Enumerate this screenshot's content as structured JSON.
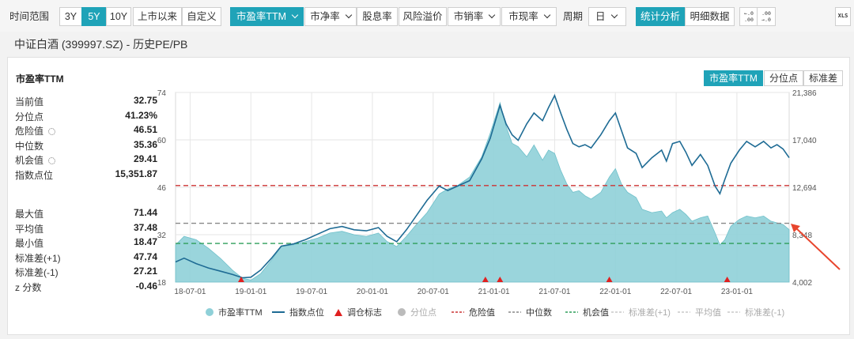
{
  "toolbar": {
    "range_label": "时间范围",
    "ranges": [
      "3Y",
      "5Y",
      "10Y",
      "上市以来",
      "自定义"
    ],
    "active_range": "5Y",
    "metrics": [
      "市盈率TTM",
      "市净率",
      "股息率",
      "风险溢价",
      "市销率",
      "市现率"
    ],
    "active_metric": "市盈率TTM",
    "period_label": "周期",
    "period_value": "日",
    "view_buttons": [
      "统计分析",
      "明细数据"
    ],
    "active_view": "统计分析",
    "decimal_up_icon": [
      "←.0",
      ".00"
    ],
    "decimal_down_icon": [
      ".00",
      "→.0"
    ],
    "export_icon": "XLS"
  },
  "page_title": "中证白酒 (399997.SZ) - 历史PE/PB",
  "panel": {
    "title": "市盈率TTM",
    "segments": [
      "市盈率TTM",
      "分位点",
      "标准差"
    ],
    "active_segment": "市盈率TTM"
  },
  "stats_top": [
    {
      "label": "当前值",
      "value": "32.75"
    },
    {
      "label": "分位点",
      "value": "41.23%"
    },
    {
      "label": "危险值",
      "value": "46.51",
      "gear": true
    },
    {
      "label": "中位数",
      "value": "35.36"
    },
    {
      "label": "机会值",
      "value": "29.41",
      "gear": true
    },
    {
      "label": "指数点位",
      "value": "15,351.87"
    }
  ],
  "stats_bottom": [
    {
      "label": "最大值",
      "value": "71.44"
    },
    {
      "label": "平均值",
      "value": "37.48"
    },
    {
      "label": "最小值",
      "value": "18.47"
    },
    {
      "label": "标准差(+1)",
      "value": "47.74"
    },
    {
      "label": "标准差(-1)",
      "value": "27.21"
    },
    {
      "label": "z 分数",
      "value": "-0.46"
    }
  ],
  "chart_data": {
    "type": "area",
    "x_ticks": [
      "18-07-01",
      "19-01-01",
      "19-07-01",
      "20-01-01",
      "20-07-01",
      "21-01-01",
      "21-07-01",
      "22-01-01",
      "22-07-01",
      "23-01-01"
    ],
    "x_start": 2018.38,
    "x_end": 2023.43,
    "y_left_ticks": [
      "74",
      "60",
      "46",
      "32",
      "18"
    ],
    "y_left_range": [
      18,
      74
    ],
    "y_right_ticks": [
      "21,386",
      "17,040",
      "12,694",
      "8,348",
      "4,002"
    ],
    "y_right_range": [
      4002,
      21386
    ],
    "grid": true,
    "colors": {
      "pe_area": "#8fd0d8",
      "index_line": "#1e6b94",
      "rebalance": "#e02020",
      "danger": "#cc3333",
      "median": "#888888",
      "opportunity": "#2e9e5a",
      "grid": "#e6e6e6"
    },
    "series": [
      {
        "name": "市盈率TTM",
        "axis": "left",
        "points": [
          [
            2018.38,
            29.0
          ],
          [
            2018.45,
            31.5
          ],
          [
            2018.55,
            30.5
          ],
          [
            2018.65,
            28.0
          ],
          [
            2018.75,
            25.0
          ],
          [
            2018.85,
            21.5
          ],
          [
            2018.93,
            19.2
          ],
          [
            2019.0,
            18.6
          ],
          [
            2019.08,
            20.5
          ],
          [
            2019.17,
            24.5
          ],
          [
            2019.25,
            28.5
          ],
          [
            2019.35,
            29.0
          ],
          [
            2019.45,
            30.0
          ],
          [
            2019.55,
            31.0
          ],
          [
            2019.65,
            32.5
          ],
          [
            2019.75,
            33.0
          ],
          [
            2019.85,
            32.0
          ],
          [
            2019.95,
            31.5
          ],
          [
            2020.05,
            32.5
          ],
          [
            2020.12,
            30.0
          ],
          [
            2020.2,
            28.5
          ],
          [
            2020.28,
            31.5
          ],
          [
            2020.35,
            34.5
          ],
          [
            2020.45,
            38.5
          ],
          [
            2020.55,
            44.0
          ],
          [
            2020.62,
            45.5
          ],
          [
            2020.7,
            46.5
          ],
          [
            2020.8,
            49.0
          ],
          [
            2020.9,
            55.0
          ],
          [
            2020.97,
            62.0
          ],
          [
            2021.05,
            71.0
          ],
          [
            2021.1,
            64.0
          ],
          [
            2021.15,
            59.0
          ],
          [
            2021.2,
            58.0
          ],
          [
            2021.27,
            55.0
          ],
          [
            2021.33,
            58.5
          ],
          [
            2021.4,
            54.0
          ],
          [
            2021.45,
            57.0
          ],
          [
            2021.5,
            56.0
          ],
          [
            2021.55,
            51.0
          ],
          [
            2021.6,
            47.0
          ],
          [
            2021.65,
            44.5
          ],
          [
            2021.7,
            45.0
          ],
          [
            2021.75,
            43.5
          ],
          [
            2021.8,
            42.5
          ],
          [
            2021.88,
            44.5
          ],
          [
            2021.95,
            49.0
          ],
          [
            2022.0,
            51.5
          ],
          [
            2022.05,
            47.0
          ],
          [
            2022.1,
            44.5
          ],
          [
            2022.17,
            43.0
          ],
          [
            2022.22,
            39.5
          ],
          [
            2022.3,
            38.5
          ],
          [
            2022.38,
            39.0
          ],
          [
            2022.42,
            37.0
          ],
          [
            2022.47,
            38.5
          ],
          [
            2022.53,
            39.5
          ],
          [
            2022.58,
            38.0
          ],
          [
            2022.63,
            36.0
          ],
          [
            2022.7,
            37.0
          ],
          [
            2022.76,
            37.5
          ],
          [
            2022.82,
            32.5
          ],
          [
            2022.86,
            29.0
          ],
          [
            2022.9,
            30.5
          ],
          [
            2022.95,
            34.5
          ],
          [
            2023.02,
            36.5
          ],
          [
            2023.08,
            37.5
          ],
          [
            2023.15,
            37.0
          ],
          [
            2023.22,
            37.5
          ],
          [
            2023.28,
            36.0
          ],
          [
            2023.33,
            35.5
          ],
          [
            2023.38,
            35.0
          ],
          [
            2023.43,
            33.5
          ]
        ]
      },
      {
        "name": "指数点位",
        "axis": "right",
        "points": [
          [
            2018.38,
            5850
          ],
          [
            2018.45,
            6200
          ],
          [
            2018.55,
            5700
          ],
          [
            2018.65,
            5300
          ],
          [
            2018.75,
            5000
          ],
          [
            2018.85,
            4700
          ],
          [
            2018.93,
            4400
          ],
          [
            2019.0,
            4450
          ],
          [
            2019.08,
            5100
          ],
          [
            2019.17,
            6200
          ],
          [
            2019.25,
            7300
          ],
          [
            2019.35,
            7500
          ],
          [
            2019.45,
            7900
          ],
          [
            2019.55,
            8400
          ],
          [
            2019.65,
            8900
          ],
          [
            2019.75,
            9100
          ],
          [
            2019.85,
            8800
          ],
          [
            2019.95,
            8700
          ],
          [
            2020.05,
            9000
          ],
          [
            2020.12,
            8200
          ],
          [
            2020.2,
            7700
          ],
          [
            2020.28,
            8800
          ],
          [
            2020.35,
            9900
          ],
          [
            2020.45,
            11500
          ],
          [
            2020.55,
            12800
          ],
          [
            2020.62,
            12400
          ],
          [
            2020.7,
            12800
          ],
          [
            2020.8,
            13300
          ],
          [
            2020.9,
            15300
          ],
          [
            2020.97,
            17200
          ],
          [
            2021.05,
            20200
          ],
          [
            2021.1,
            18500
          ],
          [
            2021.15,
            17500
          ],
          [
            2021.2,
            17000
          ],
          [
            2021.27,
            18500
          ],
          [
            2021.33,
            19500
          ],
          [
            2021.4,
            18800
          ],
          [
            2021.45,
            20000
          ],
          [
            2021.5,
            21100
          ],
          [
            2021.55,
            19500
          ],
          [
            2021.6,
            18000
          ],
          [
            2021.65,
            16700
          ],
          [
            2021.7,
            16400
          ],
          [
            2021.75,
            16600
          ],
          [
            2021.8,
            16300
          ],
          [
            2021.88,
            17500
          ],
          [
            2021.95,
            18800
          ],
          [
            2022.0,
            19500
          ],
          [
            2022.05,
            17900
          ],
          [
            2022.1,
            16300
          ],
          [
            2022.17,
            15800
          ],
          [
            2022.22,
            14500
          ],
          [
            2022.3,
            15400
          ],
          [
            2022.38,
            16100
          ],
          [
            2022.42,
            15100
          ],
          [
            2022.47,
            16700
          ],
          [
            2022.53,
            16900
          ],
          [
            2022.58,
            15900
          ],
          [
            2022.63,
            14700
          ],
          [
            2022.7,
            15700
          ],
          [
            2022.76,
            14700
          ],
          [
            2022.82,
            12800
          ],
          [
            2022.86,
            12100
          ],
          [
            2022.9,
            13400
          ],
          [
            2022.95,
            14900
          ],
          [
            2023.02,
            16100
          ],
          [
            2023.08,
            16900
          ],
          [
            2023.15,
            16400
          ],
          [
            2023.22,
            16900
          ],
          [
            2023.28,
            16300
          ],
          [
            2023.33,
            16600
          ],
          [
            2023.38,
            16200
          ],
          [
            2023.43,
            15400
          ]
        ]
      }
    ],
    "reference_lines": [
      {
        "name": "危险值",
        "value": 46.51
      },
      {
        "name": "中位数",
        "value": 35.36
      },
      {
        "name": "机会值",
        "value": 29.41
      }
    ],
    "rebalance_markers": [
      2018.92,
      2020.93,
      2021.05,
      2021.95,
      2022.92
    ],
    "legend": [
      {
        "label": "市盈率TTM",
        "type": "circle",
        "color": "#8fd0d8",
        "dim": false
      },
      {
        "label": "指数点位",
        "type": "line",
        "color": "#1e6b94",
        "dim": false
      },
      {
        "label": "调仓标志",
        "type": "triangle",
        "color": "#e02020",
        "dim": false
      },
      {
        "label": "分位点",
        "type": "circle",
        "color": "#bbbbbb",
        "dim": true
      },
      {
        "label": "危险值",
        "type": "dash",
        "color": "#cc3333",
        "dim": false
      },
      {
        "label": "中位数",
        "type": "dash",
        "color": "#888888",
        "dim": false
      },
      {
        "label": "机会值",
        "type": "dash",
        "color": "#2e9e5a",
        "dim": false
      },
      {
        "label": "标准差(+1)",
        "type": "dash",
        "color": "#c8c8c8",
        "dim": true
      },
      {
        "label": "平均值",
        "type": "dash",
        "color": "#c8c8c8",
        "dim": true
      },
      {
        "label": "标准差(-1)",
        "type": "dash",
        "color": "#c8c8c8",
        "dim": true
      }
    ],
    "pointer_arrow_color": "#e8462e"
  }
}
